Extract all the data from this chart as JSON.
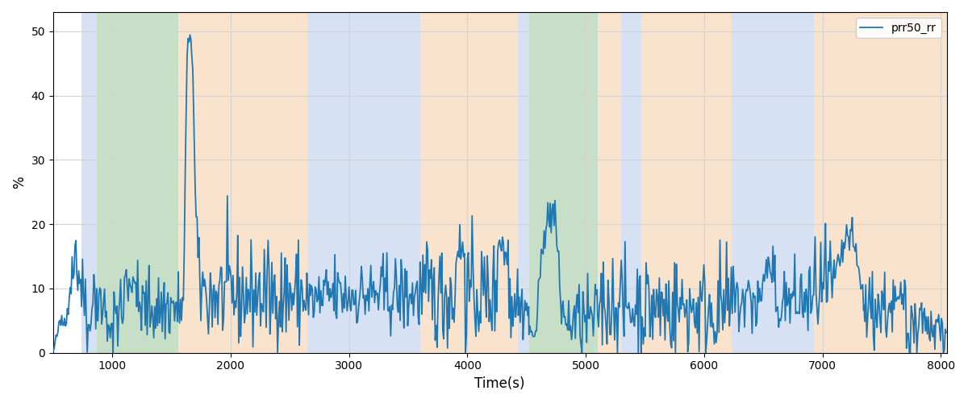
{
  "xlabel": "Time(s)",
  "ylabel": "%",
  "xlim": [
    500,
    8050
  ],
  "ylim": [
    0,
    53
  ],
  "yticks": [
    0,
    10,
    20,
    30,
    40,
    50
  ],
  "xticks": [
    1000,
    2000,
    3000,
    4000,
    5000,
    6000,
    7000,
    8000
  ],
  "legend_label": "prr50_rr",
  "line_color": "#1f77b4",
  "line_width": 1.3,
  "bg_regions": [
    {
      "start": 740,
      "end": 870,
      "color": "#aec6e8",
      "alpha": 0.5
    },
    {
      "start": 870,
      "end": 1560,
      "color": "#90c090",
      "alpha": 0.5
    },
    {
      "start": 1560,
      "end": 2650,
      "color": "#f5c89a",
      "alpha": 0.5
    },
    {
      "start": 2650,
      "end": 2800,
      "color": "#aec6e8",
      "alpha": 0.5
    },
    {
      "start": 2800,
      "end": 3600,
      "color": "#aec6e8",
      "alpha": 0.5
    },
    {
      "start": 3600,
      "end": 4430,
      "color": "#f5c89a",
      "alpha": 0.5
    },
    {
      "start": 4430,
      "end": 4520,
      "color": "#aec6e8",
      "alpha": 0.5
    },
    {
      "start": 4520,
      "end": 5100,
      "color": "#90c090",
      "alpha": 0.5
    },
    {
      "start": 5100,
      "end": 5300,
      "color": "#f5c89a",
      "alpha": 0.5
    },
    {
      "start": 5300,
      "end": 5470,
      "color": "#aec6e8",
      "alpha": 0.5
    },
    {
      "start": 5470,
      "end": 6230,
      "color": "#f5c89a",
      "alpha": 0.5
    },
    {
      "start": 6230,
      "end": 6930,
      "color": "#aec6e8",
      "alpha": 0.5
    },
    {
      "start": 6930,
      "end": 8050,
      "color": "#f5c89a",
      "alpha": 0.5
    }
  ],
  "seed": 42
}
